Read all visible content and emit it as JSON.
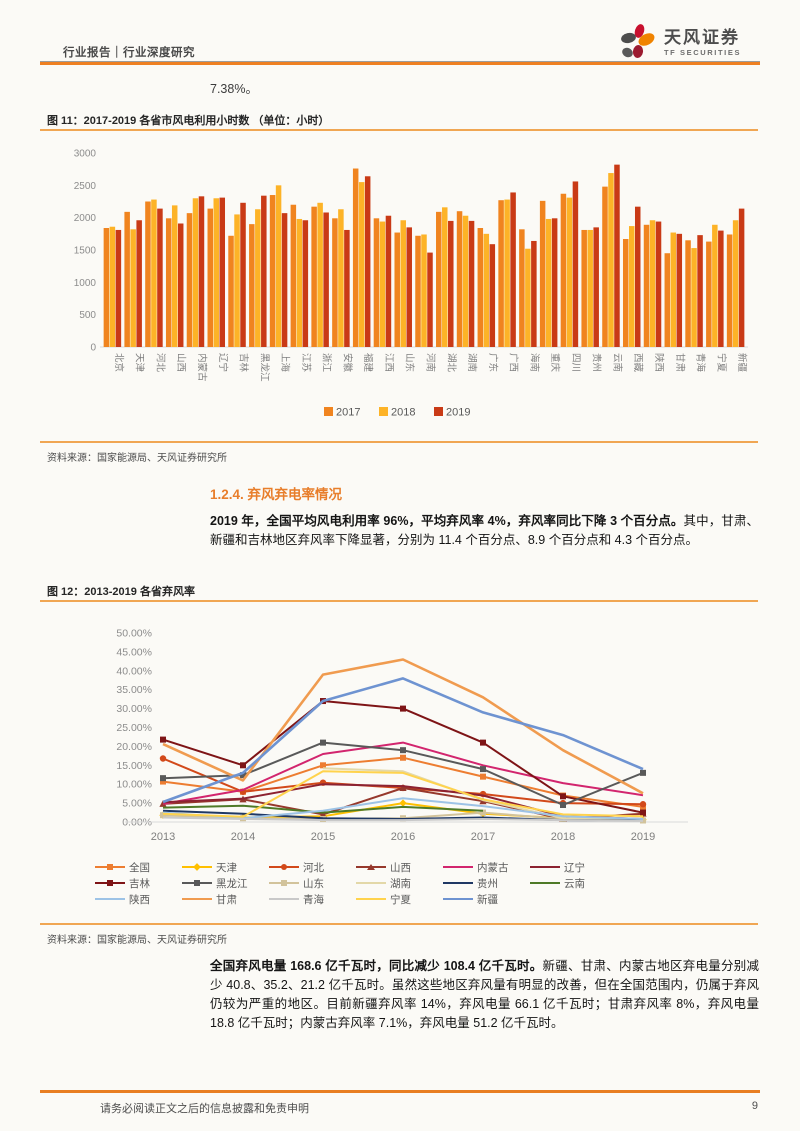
{
  "header": {
    "report_type": "行业报告｜行业深度研究",
    "brand": {
      "name_cn": "天风证券",
      "name_en": "TF SECURITIES"
    }
  },
  "lead_text": "7.38%。",
  "figure11": {
    "caption": "图 11：2017-2019 各省市风电利用小时数 （单位：小时）",
    "source": "资料来源：国家能源局、天风证券研究所",
    "chart_data": {
      "type": "bar",
      "title": "2017-2019 各省市风电利用小时数（小时）",
      "categories": [
        "北京",
        "天津",
        "河北",
        "山西",
        "内蒙古",
        "辽宁",
        "吉林",
        "黑龙江",
        "上海",
        "江苏",
        "浙江",
        "安徽",
        "福建",
        "江西",
        "山东",
        "河南",
        "湖北",
        "湖南",
        "广东",
        "广西",
        "海南",
        "重庆",
        "四川",
        "贵州",
        "云南",
        "西藏",
        "陕西",
        "甘肃",
        "青海",
        "宁夏",
        "新疆"
      ],
      "series": [
        {
          "name": "2017",
          "color": "#F0841F",
          "values": [
            1840,
            2090,
            2250,
            1990,
            2070,
            2140,
            1720,
            1900,
            2350,
            2200,
            2170,
            1990,
            2760,
            1990,
            1770,
            1720,
            2090,
            2100,
            1840,
            2270,
            1820,
            2260,
            2370,
            1810,
            2480,
            1670,
            1890,
            1450,
            1650,
            1630,
            1740
          ]
        },
        {
          "name": "2018",
          "color": "#FDB327",
          "values": [
            1860,
            1820,
            2280,
            2190,
            2300,
            2300,
            2050,
            2130,
            2500,
            1980,
            2230,
            2130,
            2550,
            1940,
            1960,
            1740,
            2160,
            2030,
            1750,
            2280,
            1520,
            1980,
            2310,
            1810,
            2690,
            1870,
            1960,
            1770,
            1530,
            1890,
            1960
          ]
        },
        {
          "name": "2019",
          "color": "#C93A16",
          "values": [
            1810,
            1960,
            2140,
            1910,
            2330,
            2310,
            2230,
            2340,
            2070,
            1960,
            2080,
            1810,
            2640,
            2030,
            1850,
            1460,
            1950,
            1950,
            1590,
            2390,
            1640,
            1990,
            2560,
            1850,
            2820,
            2170,
            1940,
            1750,
            1730,
            1800,
            2140
          ]
        }
      ],
      "ylim": [
        0,
        3000
      ],
      "ytick_step": 500,
      "grid": false,
      "legend_position": "bottom"
    }
  },
  "section_1_2_4": {
    "heading": "1.2.4. 弃风弃电率情况",
    "paragraph_bold": "2019 年，全国平均风电利用率 96%，平均弃风率 4%，弃风率同比下降 3 个百分点。",
    "paragraph_regular": "其中，甘肃、新疆和吉林地区弃风率下降显著，分别为 11.4 个百分点、8.9 个百分点和 4.3 个百分点。"
  },
  "figure12": {
    "caption": "图 12：2013-2019 各省弃风率",
    "source": "资料来源：国家能源局、天风证券研究所",
    "chart_data": {
      "type": "line",
      "title": "2013-2019 各省弃风率",
      "x": [
        "2013",
        "2014",
        "2015",
        "2016",
        "2017",
        "2018",
        "2019"
      ],
      "ylim": [
        0,
        50
      ],
      "ytick_step": 5,
      "ytick_suffix": "%",
      "ytick_decimals": 2,
      "grid": false,
      "legend_position": "bottom",
      "series": [
        {
          "name": "全国",
          "color": "#ED7D31",
          "marker": "square",
          "weight": 2,
          "values": [
            10.7,
            8.0,
            15.0,
            17.0,
            12.0,
            7.0,
            4.0
          ]
        },
        {
          "name": "天津",
          "color": "#FFC000",
          "marker": "diamond",
          "weight": 2,
          "values": [
            1.8,
            1.2,
            1.5,
            5.0,
            2.2,
            1.0,
            0.6
          ]
        },
        {
          "name": "河北",
          "color": "#D2491A",
          "marker": "circle",
          "weight": 2,
          "values": [
            16.8,
            8.0,
            10.4,
            9.0,
            7.4,
            5.0,
            4.7
          ]
        },
        {
          "name": "山西",
          "color": "#96382C",
          "marker": "triangle",
          "weight": 2,
          "values": [
            4.8,
            6.0,
            2.0,
            9.0,
            5.5,
            0.8,
            2.2
          ]
        },
        {
          "name": "内蒙古",
          "color": "#D2256E",
          "marker": "none",
          "weight": 2,
          "values": [
            4.8,
            8.5,
            18.0,
            21.0,
            15.0,
            10.3,
            7.1
          ]
        },
        {
          "name": "辽宁",
          "color": "#8C2231",
          "marker": "none",
          "weight": 2,
          "values": [
            5.2,
            6.2,
            10.0,
            9.5,
            7.0,
            1.5,
            0.8
          ]
        },
        {
          "name": "吉林",
          "color": "#7E1416",
          "marker": "square",
          "weight": 2,
          "values": [
            21.8,
            15.0,
            32.0,
            30.0,
            21.0,
            6.8,
            2.5
          ]
        },
        {
          "name": "黑龙江",
          "color": "#595959",
          "marker": "square",
          "weight": 2,
          "values": [
            11.6,
            12.4,
            21.0,
            19.0,
            14.0,
            4.5,
            13.0
          ]
        },
        {
          "name": "山东",
          "color": "#D2C39B",
          "marker": "square",
          "weight": 2,
          "values": [
            1.8,
            1.0,
            0.8,
            1.0,
            2.5,
            0.8,
            0.4
          ]
        },
        {
          "name": "湖南",
          "color": "#E3D8A8",
          "marker": "none",
          "weight": 2,
          "values": [
            null,
            null,
            14.2,
            13.4,
            5.8,
            1.0,
            0.8
          ]
        },
        {
          "name": "贵州",
          "color": "#1F3864",
          "marker": "none",
          "weight": 2,
          "values": [
            3.0,
            2.2,
            1.0,
            0.8,
            1.2,
            0.5,
            0.4
          ]
        },
        {
          "name": "云南",
          "color": "#4E7A27",
          "marker": "none",
          "weight": 2,
          "values": [
            3.8,
            4.3,
            2.5,
            4.0,
            3.0,
            null,
            null
          ]
        },
        {
          "name": "陕西",
          "color": "#9DC3E6",
          "marker": "none",
          "weight": 2,
          "values": [
            2.5,
            1.0,
            3.0,
            6.3,
            4.2,
            1.5,
            0.8
          ]
        },
        {
          "name": "甘肃",
          "color": "#F09B4F",
          "marker": "none",
          "weight": 2.6,
          "values": [
            20.6,
            11.0,
            39.0,
            43.0,
            33.0,
            19.0,
            7.6
          ]
        },
        {
          "name": "青海",
          "color": "#C9C9C9",
          "marker": "none",
          "weight": 2,
          "values": [
            1.2,
            0.8,
            0.5,
            0.5,
            0.8,
            0.5,
            0.3
          ]
        },
        {
          "name": "宁夏",
          "color": "#FFD34D",
          "marker": "none",
          "weight": 2,
          "values": [
            2.2,
            1.4,
            13.4,
            13.0,
            6.0,
            2.0,
            1.5
          ]
        },
        {
          "name": "新疆",
          "color": "#6E93D1",
          "marker": "none",
          "weight": 2.6,
          "values": [
            5.3,
            13.0,
            32.0,
            38.0,
            29.0,
            23.0,
            14.0
          ]
        }
      ]
    }
  },
  "analysis_paragraph": {
    "bold": "全国弃风电量 168.6 亿千瓦时，同比减少 108.4 亿千瓦时。",
    "regular": "新疆、甘肃、内蒙古地区弃电量分别减少 40.8、35.2、21.2 亿千瓦时。虽然这些地区弃风量有明显的改善，但在全国范围内，仍属于弃风仍较为严重的地区。目前新疆弃风率 14%，弃风电量 66.1 亿千瓦时；甘肃弃风率 8%，弃风电量 18.8 亿千瓦时；内蒙古弃风率 7.1%，弃风电量 51.2 亿千瓦时。"
  },
  "footer": {
    "disclaimer": "请务必阅读正文之后的信息披露和免责申明",
    "page_number": "9"
  }
}
